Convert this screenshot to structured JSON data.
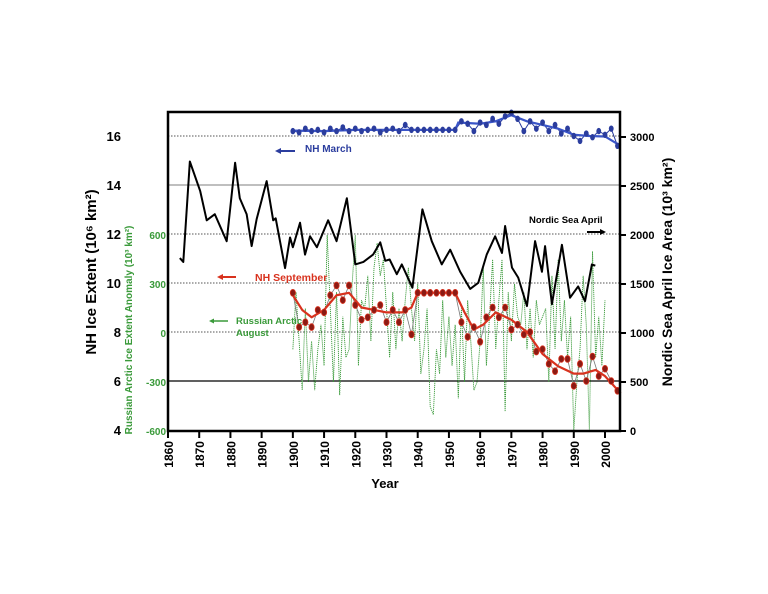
{
  "chart_data": {
    "type": "line",
    "xlabel": "Year",
    "ylabel_left": "NH Ice Extent (10⁶ km²)",
    "ylabel_green": "Russian Arctic  Ice Extent Anomaly  (10³ km²)",
    "ylabel_right": "Nordic Sea April Ice Area (10³ km²)",
    "xlim": [
      1860,
      2005
    ],
    "ylim_left": [
      4,
      17
    ],
    "ylim_right": [
      0,
      3250
    ],
    "ylim_green": [
      -600,
      1350
    ],
    "x_ticks": [
      "1860",
      "1870",
      "1880",
      "1890",
      "1900",
      "1910",
      "1920",
      "1930",
      "1940",
      "1950",
      "1960",
      "1970",
      "1980",
      "1990",
      "2000"
    ],
    "left_ticks": [
      "4",
      "6",
      "8",
      "10",
      "12",
      "14",
      "16"
    ],
    "green_ticks": [
      "-600",
      "-300",
      "0",
      "300",
      "600"
    ],
    "right_ticks": [
      "0",
      "500",
      "1000",
      "1500",
      "2000",
      "2500",
      "3000"
    ],
    "grid": "horizontal",
    "annotations": {
      "nh_march": "NH March",
      "nh_september": "NH September",
      "russian_line1": "Russian Arctic",
      "russian_line2": "August",
      "nordic": "Nordic Sea April"
    },
    "colors": {
      "nh_march": "#2b3d9e",
      "nh_september": "#d8321e",
      "nh_september_points": "#8b1a14",
      "russian": "#3a9a3a",
      "nordic": "#000000"
    },
    "nordic_sea_april": {
      "axis": "right",
      "points": [
        [
          1863.8,
          1765
        ],
        [
          1864.9,
          1725
        ],
        [
          1867,
          2750
        ],
        [
          1870.3,
          2450
        ],
        [
          1872.4,
          2150
        ],
        [
          1875,
          2212
        ],
        [
          1878.8,
          1937
        ],
        [
          1881.5,
          2737
        ],
        [
          1883,
          2375
        ],
        [
          1885.2,
          2212
        ],
        [
          1886.8,
          1887
        ],
        [
          1888.4,
          2162
        ],
        [
          1891.6,
          2550
        ],
        [
          1893.7,
          2150
        ],
        [
          1894.5,
          2170
        ],
        [
          1897.5,
          1662
        ],
        [
          1899.1,
          1975
        ],
        [
          1900,
          1875
        ],
        [
          1902.3,
          2125
        ],
        [
          1903.9,
          1800
        ],
        [
          1905.5,
          1987
        ],
        [
          1907.7,
          1875
        ],
        [
          1911.3,
          2150
        ],
        [
          1914,
          1937
        ],
        [
          1917.3,
          2375
        ],
        [
          1920,
          1700
        ],
        [
          1922.6,
          1725
        ],
        [
          1925.7,
          1800
        ],
        [
          1928,
          1925
        ],
        [
          1929.6,
          1737
        ],
        [
          1931,
          1750
        ],
        [
          1933.3,
          1600
        ],
        [
          1934.9,
          1700
        ],
        [
          1938.3,
          1462
        ],
        [
          1941.5,
          2262
        ],
        [
          1944.5,
          1937
        ],
        [
          1947.7,
          1700
        ],
        [
          1950.4,
          1850
        ],
        [
          1953.6,
          1625
        ],
        [
          1956.8,
          1450
        ],
        [
          1959.4,
          1512
        ],
        [
          1962.1,
          1800
        ],
        [
          1964.8,
          1987
        ],
        [
          1967,
          1817
        ],
        [
          1968,
          2092
        ],
        [
          1970.2,
          1667
        ],
        [
          1972.2,
          1565
        ],
        [
          1975,
          1275
        ],
        [
          1977.6,
          1937
        ],
        [
          1979.8,
          1625
        ],
        [
          1980.8,
          1887
        ],
        [
          1983,
          1295
        ],
        [
          1986.2,
          1900
        ],
        [
          1988.8,
          1360
        ],
        [
          1991.4,
          1475
        ],
        [
          1993.6,
          1325
        ],
        [
          1995.8,
          1700
        ],
        [
          1996.9,
          1687
        ]
      ]
    },
    "nh_march": {
      "axis": "left",
      "smooth": [
        [
          1900,
          16.22
        ],
        [
          1910,
          16.2
        ],
        [
          1920,
          16.25
        ],
        [
          1935,
          16.25
        ],
        [
          1952,
          16.25
        ],
        [
          1953,
          16.55
        ],
        [
          1960,
          16.5
        ],
        [
          1965,
          16.6
        ],
        [
          1970,
          16.85
        ],
        [
          1975,
          16.6
        ],
        [
          1980,
          16.45
        ],
        [
          1985,
          16.3
        ],
        [
          1990,
          16.05
        ],
        [
          1995,
          16.0
        ],
        [
          2000,
          15.98
        ],
        [
          2005,
          15.6
        ]
      ],
      "observations": [
        [
          1900,
          16.2
        ],
        [
          1902,
          16.15
        ],
        [
          1904,
          16.3
        ],
        [
          1906,
          16.2
        ],
        [
          1908,
          16.25
        ],
        [
          1910,
          16.15
        ],
        [
          1912,
          16.3
        ],
        [
          1914,
          16.2
        ],
        [
          1916,
          16.35
        ],
        [
          1918,
          16.2
        ],
        [
          1920,
          16.3
        ],
        [
          1922,
          16.2
        ],
        [
          1924,
          16.25
        ],
        [
          1926,
          16.3
        ],
        [
          1928,
          16.15
        ],
        [
          1930,
          16.25
        ],
        [
          1932,
          16.3
        ],
        [
          1934,
          16.2
        ],
        [
          1936,
          16.45
        ],
        [
          1938,
          16.25
        ],
        [
          1940,
          16.25
        ],
        [
          1942,
          16.25
        ],
        [
          1944,
          16.25
        ],
        [
          1946,
          16.25
        ],
        [
          1948,
          16.25
        ],
        [
          1950,
          16.25
        ],
        [
          1952,
          16.25
        ],
        [
          1954,
          16.6
        ],
        [
          1956,
          16.5
        ],
        [
          1958,
          16.2
        ],
        [
          1960,
          16.55
        ],
        [
          1962,
          16.45
        ],
        [
          1964,
          16.7
        ],
        [
          1966,
          16.5
        ],
        [
          1968,
          16.8
        ],
        [
          1970,
          16.95
        ],
        [
          1972,
          16.7
        ],
        [
          1974,
          16.2
        ],
        [
          1976,
          16.6
        ],
        [
          1978,
          16.3
        ],
        [
          1980,
          16.55
        ],
        [
          1982,
          16.2
        ],
        [
          1984,
          16.45
        ],
        [
          1986,
          16.1
        ],
        [
          1988,
          16.3
        ],
        [
          1990,
          16.0
        ],
        [
          1992,
          15.8
        ],
        [
          1994,
          16.1
        ],
        [
          1996,
          15.95
        ],
        [
          1998,
          16.2
        ],
        [
          2000,
          16.05
        ],
        [
          2002,
          16.3
        ],
        [
          2004,
          15.6
        ]
      ]
    },
    "nh_september": {
      "axis": "left",
      "smooth": [
        [
          1900,
          9.5
        ],
        [
          1903,
          8.9
        ],
        [
          1906,
          8.6
        ],
        [
          1910,
          8.9
        ],
        [
          1914,
          9.5
        ],
        [
          1918,
          9.6
        ],
        [
          1922,
          9.0
        ],
        [
          1926,
          8.9
        ],
        [
          1930,
          8.8
        ],
        [
          1935,
          8.8
        ],
        [
          1938,
          9.0
        ],
        [
          1940,
          9.6
        ],
        [
          1952,
          9.6
        ],
        [
          1955,
          8.8
        ],
        [
          1958,
          8.1
        ],
        [
          1961,
          8.3
        ],
        [
          1965,
          8.8
        ],
        [
          1970,
          8.5
        ],
        [
          1975,
          8.0
        ],
        [
          1980,
          7.1
        ],
        [
          1985,
          6.6
        ],
        [
          1990,
          6.3
        ],
        [
          1993,
          6.3
        ],
        [
          1997,
          6.45
        ],
        [
          2000,
          6.2
        ],
        [
          2005,
          5.5
        ]
      ],
      "observations": [
        [
          1900,
          9.6
        ],
        [
          1902,
          8.2
        ],
        [
          1904,
          8.4
        ],
        [
          1906,
          8.2
        ],
        [
          1908,
          8.9
        ],
        [
          1910,
          8.8
        ],
        [
          1912,
          9.5
        ],
        [
          1914,
          9.9
        ],
        [
          1916,
          9.3
        ],
        [
          1918,
          9.9
        ],
        [
          1920,
          9.1
        ],
        [
          1922,
          8.5
        ],
        [
          1924,
          8.6
        ],
        [
          1926,
          8.9
        ],
        [
          1928,
          9.1
        ],
        [
          1930,
          8.4
        ],
        [
          1932,
          8.9
        ],
        [
          1934,
          8.4
        ],
        [
          1936,
          8.9
        ],
        [
          1938,
          7.9
        ],
        [
          1940,
          9.6
        ],
        [
          1942,
          9.6
        ],
        [
          1944,
          9.6
        ],
        [
          1946,
          9.6
        ],
        [
          1948,
          9.6
        ],
        [
          1950,
          9.6
        ],
        [
          1952,
          9.6
        ],
        [
          1954,
          8.4
        ],
        [
          1956,
          7.8
        ],
        [
          1958,
          8.2
        ],
        [
          1960,
          7.6
        ],
        [
          1962,
          8.6
        ],
        [
          1964,
          9.0
        ],
        [
          1966,
          8.6
        ],
        [
          1968,
          9.0
        ],
        [
          1970,
          8.1
        ],
        [
          1972,
          8.3
        ],
        [
          1974,
          7.9
        ],
        [
          1976,
          8.0
        ],
        [
          1978,
          7.2
        ],
        [
          1980,
          7.3
        ],
        [
          1982,
          6.7
        ],
        [
          1984,
          6.4
        ],
        [
          1986,
          6.9
        ],
        [
          1988,
          6.9
        ],
        [
          1990,
          5.8
        ],
        [
          1992,
          6.7
        ],
        [
          1994,
          6.0
        ],
        [
          1996,
          7.0
        ],
        [
          1998,
          6.2
        ],
        [
          2000,
          6.5
        ],
        [
          2002,
          6.0
        ],
        [
          2004,
          5.6
        ]
      ]
    },
    "russian_arctic_august": {
      "axis": "green",
      "start_year": 1900,
      "values": [
        -100,
        250,
        -50,
        -350,
        150,
        -300,
        -50,
        -350,
        -100,
        50,
        -200,
        600,
        150,
        -300,
        250,
        -380,
        100,
        -150,
        -100,
        300,
        600,
        -200,
        200,
        150,
        350,
        -50,
        400,
        550,
        350,
        450,
        150,
        -150,
        250,
        -100,
        150,
        -50,
        200,
        400,
        150,
        -50,
        300,
        -250,
        -100,
        150,
        -450,
        -500,
        -100,
        -250,
        200,
        -150,
        100,
        -200,
        50,
        -400,
        150,
        -300,
        200,
        -50,
        -350,
        -300,
        -50,
        400,
        -200,
        100,
        450,
        -100,
        200,
        450,
        -480,
        250,
        -50,
        300,
        100,
        50,
        250,
        -100,
        150,
        -150,
        200,
        50,
        100,
        150,
        -300,
        350,
        -100,
        450,
        -50,
        200,
        -150,
        100,
        -600,
        -300,
        -100,
        350,
        50,
        -600,
        500,
        -150,
        100,
        -200,
        200
      ]
    }
  }
}
